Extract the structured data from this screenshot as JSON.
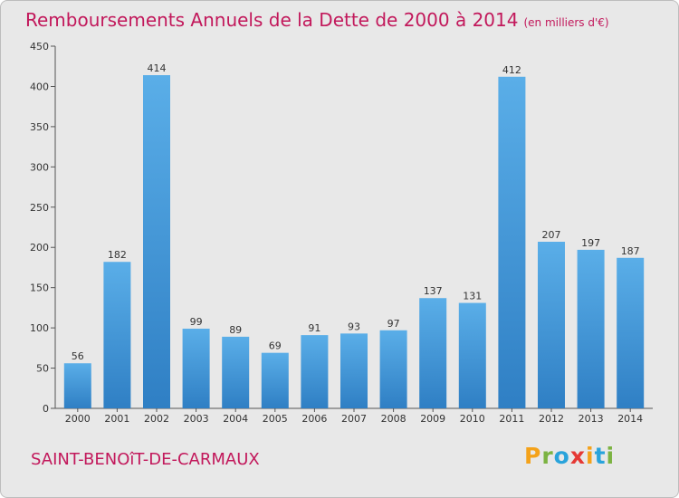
{
  "header": {
    "title": "Remboursements Annuels de la Dette de 2000 à 2014",
    "subtitle": "(en milliers d'€)"
  },
  "footer": {
    "city": "SAINT-BENOîT-DE-CARMAUX",
    "brand_letters": [
      "P",
      "r",
      "o",
      "x",
      "i",
      "t",
      "i"
    ]
  },
  "colors": {
    "accent": "#c2185b",
    "bar_top": "#5aaee8",
    "bar_bottom": "#2f7fc4",
    "background": "#e8e8e8"
  },
  "chart_data": {
    "type": "bar",
    "title": "Remboursements Annuels de la Dette de 2000 à 2014",
    "subtitle": "(en milliers d'€)",
    "categories": [
      "2000",
      "2001",
      "2002",
      "2003",
      "2004",
      "2005",
      "2006",
      "2007",
      "2008",
      "2009",
      "2010",
      "2011",
      "2012",
      "2013",
      "2014"
    ],
    "values": [
      56,
      182,
      414,
      99,
      89,
      69,
      91,
      93,
      97,
      137,
      131,
      412,
      207,
      197,
      187
    ],
    "ylim": [
      0,
      450
    ],
    "yticks": [
      0,
      50,
      100,
      150,
      200,
      250,
      300,
      350,
      400,
      450
    ],
    "grid": false,
    "legend": "none"
  }
}
